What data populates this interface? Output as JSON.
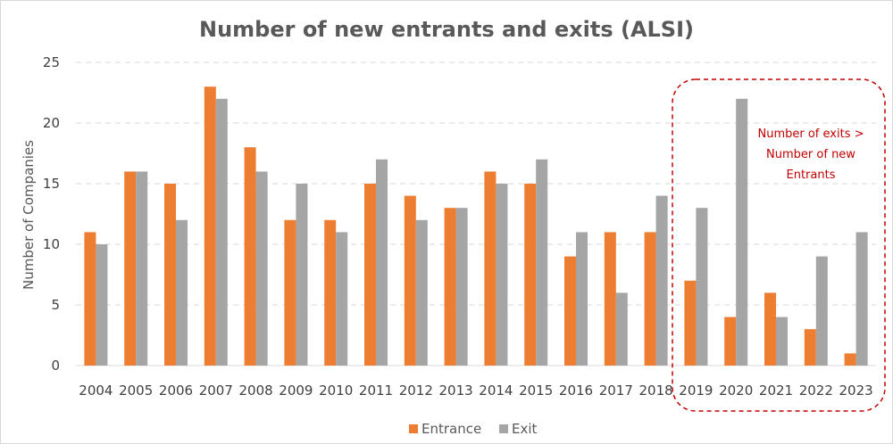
{
  "chart_data": {
    "type": "bar",
    "title": "Number of new entrants and exits (ALSI)",
    "xlabel": "",
    "ylabel": "Number of Companies",
    "categories": [
      "2004",
      "2005",
      "2006",
      "2007",
      "2008",
      "2009",
      "2010",
      "2011",
      "2012",
      "2013",
      "2014",
      "2015",
      "2016",
      "2017",
      "2018",
      "2019",
      "2020",
      "2021",
      "2022",
      "2023"
    ],
    "series": [
      {
        "name": "Entrance",
        "color": "#ed7d31",
        "values": [
          11,
          16,
          15,
          23,
          18,
          12,
          12,
          15,
          14,
          13,
          16,
          15,
          9,
          11,
          11,
          7,
          4,
          6,
          3,
          1
        ]
      },
      {
        "name": "Exit",
        "color": "#a5a5a5",
        "values": [
          10,
          16,
          12,
          22,
          16,
          15,
          11,
          17,
          12,
          13,
          15,
          17,
          11,
          6,
          14,
          13,
          22,
          4,
          9,
          11
        ]
      }
    ],
    "ylim": [
      0,
      25
    ],
    "yticks": [
      0,
      5,
      10,
      15,
      20,
      25
    ],
    "grid": true,
    "legend": "bottom-center",
    "annotation": {
      "lines": [
        "Number of exits >",
        "Number of new",
        "Entrants"
      ],
      "color": "#c00000",
      "highlight_categories": [
        "2019",
        "2020",
        "2021",
        "2022",
        "2023"
      ]
    }
  }
}
